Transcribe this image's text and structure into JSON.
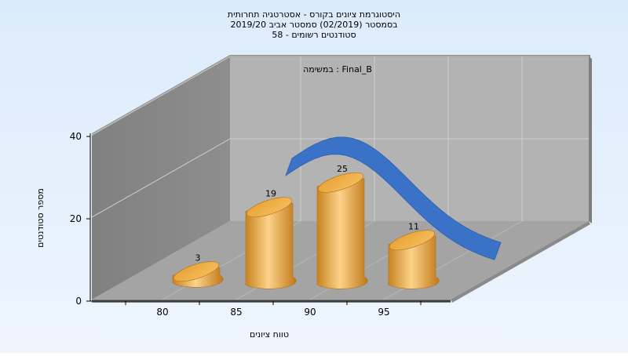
{
  "chart_data": {
    "type": "bar",
    "title": [
      "היסטוגרמת ציונים בקורס - אסטרטגיה תחרותית",
      "בסמסטר  (02/2019)  סמסטר אביב 2019/20",
      "סטודנטים רשומים - 58"
    ],
    "annotation": "במשימה : Final_B",
    "xlabel": "טווח ציונים",
    "ylabel": "מספר סטודנטים",
    "x_ticks": [
      "80",
      "85",
      "90",
      "95"
    ],
    "y_ticks": [
      "0",
      "20",
      "40"
    ],
    "ylim": [
      0,
      40
    ],
    "bars": [
      {
        "x": 80,
        "value": 3,
        "label": "3"
      },
      {
        "x": 85,
        "value": 19,
        "label": "19"
      },
      {
        "x": 90,
        "value": 25,
        "label": "25"
      },
      {
        "x": 95,
        "value": 11,
        "label": "11"
      }
    ],
    "curve": {
      "type": "normal-distribution",
      "color": "#3a72c8"
    },
    "bar_color": "#f0a830",
    "grid": true,
    "legend": "none"
  }
}
